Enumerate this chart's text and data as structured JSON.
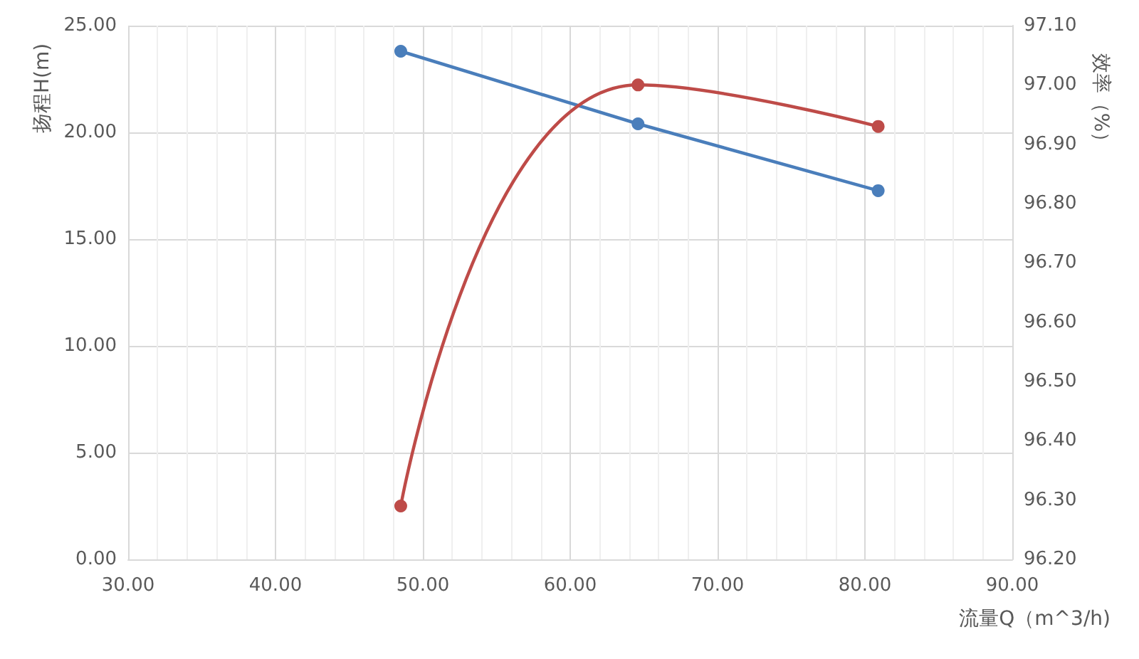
{
  "chart_data": {
    "type": "line",
    "xlabel": "流量Q（m^3/h)",
    "ylabel": "扬程H(m)",
    "y2label": "效率（%）",
    "series": [
      {
        "color": "#4a7ebb",
        "x": [
          48.5,
          64.6,
          80.9
        ],
        "values": [
          23.8,
          20.4,
          17.27
        ]
      },
      {
        "color": "#be4b48",
        "axis": "y2",
        "x": [
          48.5,
          64.6,
          80.9
        ],
        "values": [
          96.29,
          97.0,
          96.93
        ]
      }
    ],
    "xlim": [
      30,
      90
    ],
    "xticks": [
      {
        "value": 30,
        "label": "30.00"
      },
      {
        "value": 40,
        "label": "40.00"
      },
      {
        "value": 50,
        "label": "50.00"
      },
      {
        "value": 60,
        "label": "60.00"
      },
      {
        "value": 70,
        "label": "70.00"
      },
      {
        "value": 80,
        "label": "80.00"
      },
      {
        "value": 90,
        "label": "90.00"
      }
    ],
    "ylim": [
      0,
      25
    ],
    "yticks": [
      {
        "value": 0,
        "label": "0.00"
      },
      {
        "value": 5,
        "label": "5.00"
      },
      {
        "value": 10,
        "label": "10.00"
      },
      {
        "value": 15,
        "label": "15.00"
      },
      {
        "value": 20,
        "label": "20.00"
      },
      {
        "value": 25,
        "label": "25.00"
      }
    ],
    "y2lim": [
      96.2,
      97.1
    ],
    "y2ticks": [
      {
        "value": 96.2,
        "label": "96.20"
      },
      {
        "value": 96.3,
        "label": "96.30"
      },
      {
        "value": 96.4,
        "label": "96.40"
      },
      {
        "value": 96.5,
        "label": "96.50"
      },
      {
        "value": 96.6,
        "label": "96.60"
      },
      {
        "value": 96.7,
        "label": "96.70"
      },
      {
        "value": 96.8,
        "label": "96.80"
      },
      {
        "value": 96.9,
        "label": "96.90"
      },
      {
        "value": 97.0,
        "label": "97.00"
      },
      {
        "value": 97.1,
        "label": "97.10"
      }
    ],
    "grid": true,
    "marker": "circle",
    "line_style": "solid"
  }
}
